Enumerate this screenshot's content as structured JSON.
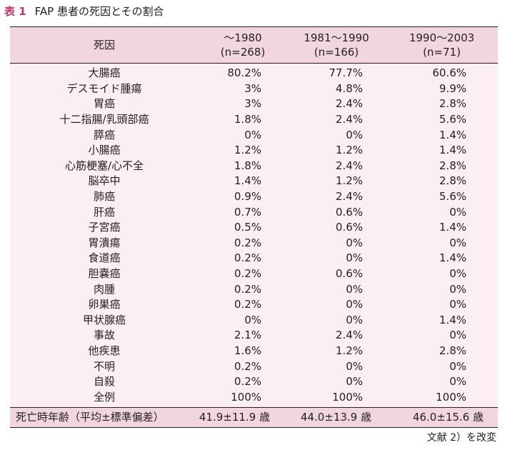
{
  "caption": {
    "number": "表 1",
    "title": "FAP 患者の死因とその割合"
  },
  "columns": [
    {
      "label": "死因"
    },
    {
      "label": "〜1980",
      "sub": "(n=268)"
    },
    {
      "label": "1981〜1990",
      "sub": "(n=166)"
    },
    {
      "label": "1990〜2003",
      "sub": "(n=71)"
    }
  ],
  "rows": [
    [
      "大腸癌",
      "80.2%",
      "77.7%",
      "60.6%"
    ],
    [
      "デスモイド腫瘍",
      "3%",
      "4.8%",
      "9.9%"
    ],
    [
      "胃癌",
      "3%",
      "2.4%",
      "2.8%"
    ],
    [
      "十二指腸/乳頭部癌",
      "1.8%",
      "2.4%",
      "5.6%"
    ],
    [
      "膵癌",
      "0%",
      "0%",
      "1.4%"
    ],
    [
      "小腸癌",
      "1.2%",
      "1.2%",
      "1.4%"
    ],
    [
      "心筋梗塞/心不全",
      "1.8%",
      "2.4%",
      "2.8%"
    ],
    [
      "脳卒中",
      "1.4%",
      "1.2%",
      "2.8%"
    ],
    [
      "肺癌",
      "0.9%",
      "2.4%",
      "5.6%"
    ],
    [
      "肝癌",
      "0.7%",
      "0.6%",
      "0%"
    ],
    [
      "子宮癌",
      "0.5%",
      "0.6%",
      "1.4%"
    ],
    [
      "胃潰瘍",
      "0.2%",
      "0%",
      "0%"
    ],
    [
      "食道癌",
      "0.2%",
      "0%",
      "1.4%"
    ],
    [
      "胆嚢癌",
      "0.2%",
      "0.6%",
      "0%"
    ],
    [
      "肉腫",
      "0.2%",
      "0%",
      "0%"
    ],
    [
      "卵巣癌",
      "0.2%",
      "0%",
      "0%"
    ],
    [
      "甲状腺癌",
      "0%",
      "0%",
      "1.4%"
    ],
    [
      "事故",
      "2.1%",
      "2.4%",
      "0%"
    ],
    [
      "他疾患",
      "1.6%",
      "1.2%",
      "2.8%"
    ],
    [
      "不明",
      "0.2%",
      "0%",
      "0%"
    ],
    [
      "自殺",
      "0.2%",
      "0%",
      "0%"
    ],
    [
      "全例",
      "100%",
      "100%",
      "100%"
    ]
  ],
  "footer": [
    "死亡時年齢（平均±標準偏差）",
    "41.9±11.9 歳",
    "44.0±13.9 歳",
    "46.0±15.6 歳"
  ],
  "source": "文献 2）を改変",
  "colors": {
    "accent": "#c0346a",
    "header_bg": "#f1d6e0",
    "body_bg": "#fbeff3",
    "text": "#231f20"
  }
}
